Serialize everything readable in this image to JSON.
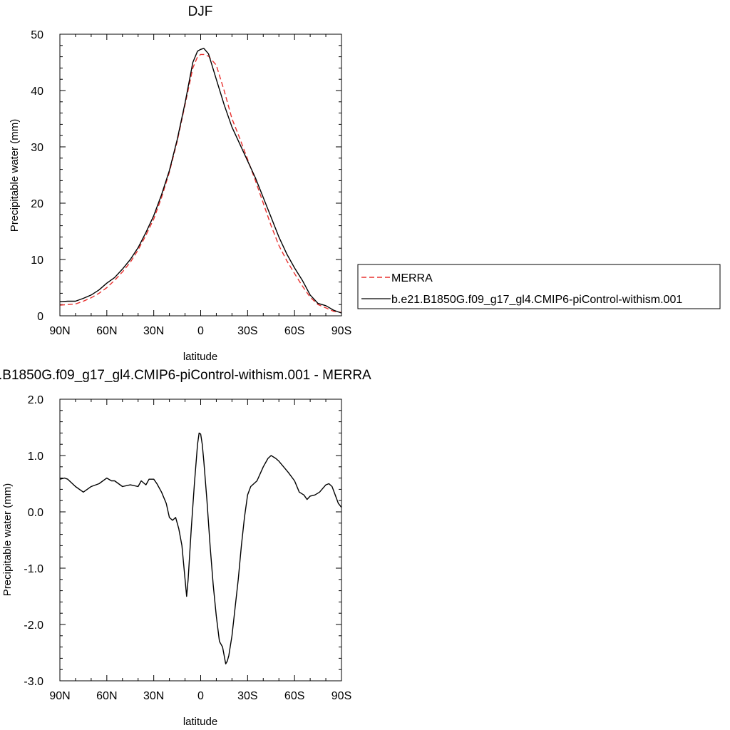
{
  "chart_data": [
    {
      "type": "line",
      "title": "DJF",
      "xlabel": "latitude",
      "ylabel": "Precipitable water (mm)",
      "xlim": [
        90,
        -90
      ],
      "ylim": [
        0,
        50
      ],
      "x_tick_values": [
        90,
        60,
        30,
        0,
        -30,
        -60,
        -90
      ],
      "x_tick_labels": [
        "90N",
        "60N",
        "30N",
        "0",
        "30S",
        "60S",
        "90S"
      ],
      "y_tick_values": [
        0,
        10,
        20,
        30,
        40,
        50
      ],
      "y_tick_labels": [
        "0",
        "10",
        "20",
        "30",
        "40",
        "50"
      ],
      "legend": {
        "placement": "right",
        "entries": [
          "MERRA",
          "b.e21.B1850G.f09_g17_gl4.CMIP6-piControl-withism.001"
        ]
      },
      "series": [
        {
          "name": "MERRA",
          "color": "#e8312f",
          "dash": "dashed",
          "x": [
            90,
            85,
            80,
            75,
            70,
            65,
            60,
            55,
            50,
            45,
            40,
            35,
            30,
            25,
            20,
            15,
            10,
            5,
            2,
            0,
            -2,
            -5,
            -10,
            -15,
            -20,
            -25,
            -30,
            -35,
            -40,
            -45,
            -50,
            -55,
            -60,
            -65,
            -70,
            -75,
            -80,
            -85,
            -90
          ],
          "y": [
            1.9,
            2.0,
            2.1,
            2.6,
            3.2,
            4.0,
            5.0,
            6.3,
            7.8,
            9.5,
            11.7,
            14.3,
            17.2,
            21.0,
            25.5,
            31.0,
            37.5,
            44.0,
            46.0,
            46.4,
            46.4,
            46.1,
            44.5,
            40.0,
            35.0,
            31.5,
            27.8,
            24.0,
            20.0,
            16.0,
            12.5,
            9.8,
            7.5,
            5.3,
            3.3,
            2.0,
            1.4,
            0.8,
            0.6
          ]
        },
        {
          "name": "b.e21.B1850G.f09_g17_gl4.CMIP6-piControl-withism.001",
          "color": "#000000",
          "dash": "solid",
          "x": [
            90,
            85,
            80,
            75,
            70,
            65,
            60,
            55,
            50,
            45,
            40,
            35,
            30,
            25,
            20,
            15,
            10,
            5,
            2,
            0,
            -2,
            -5,
            -10,
            -15,
            -20,
            -25,
            -30,
            -35,
            -40,
            -45,
            -50,
            -55,
            -60,
            -65,
            -70,
            -75,
            -80,
            -85,
            -90
          ],
          "y": [
            2.5,
            2.6,
            2.6,
            3.1,
            3.7,
            4.6,
            5.8,
            6.8,
            8.3,
            10.0,
            12.1,
            14.8,
            17.8,
            21.5,
            25.8,
            31.3,
            37.8,
            45.0,
            47.0,
            47.3,
            47.5,
            46.5,
            42.0,
            37.5,
            33.5,
            30.5,
            27.5,
            24.5,
            21.0,
            17.5,
            14.0,
            11.0,
            8.5,
            6.3,
            3.7,
            2.2,
            1.8,
            1.0,
            0.5
          ]
        }
      ]
    },
    {
      "type": "line",
      "title": ".B1850G.f09_g17_gl4.CMIP6-piControl-withism.001 - MERRA",
      "xlabel": "latitude",
      "ylabel": "Precipitable water (mm)",
      "xlim": [
        90,
        -90
      ],
      "ylim": [
        -3,
        2
      ],
      "x_tick_values": [
        90,
        60,
        30,
        0,
        -30,
        -60,
        -90
      ],
      "x_tick_labels": [
        "90N",
        "60N",
        "30N",
        "0",
        "30S",
        "60S",
        "90S"
      ],
      "y_tick_values": [
        2,
        1,
        0,
        -1,
        -2,
        -3
      ],
      "y_tick_labels": [
        "2.0",
        "1.0",
        "0.0",
        "-1.0",
        "-2.0",
        "-3.0"
      ],
      "series": [
        {
          "color": "#000000",
          "dash": "solid",
          "x": [
            90,
            87,
            85,
            80,
            75,
            70,
            65,
            60,
            57,
            55,
            50,
            45,
            40,
            38,
            35,
            33,
            30,
            28,
            25,
            22,
            20,
            18,
            16,
            14,
            12,
            10,
            9,
            8,
            6,
            4,
            2,
            1,
            0,
            -1,
            -2,
            -4,
            -6,
            -8,
            -10,
            -12,
            -14,
            -16,
            -17,
            -18,
            -20,
            -22,
            -24,
            -26,
            -28,
            -30,
            -32,
            -34,
            -36,
            -40,
            -43,
            -45,
            -48,
            -50,
            -53,
            -56,
            -60,
            -63,
            -66,
            -68,
            -70,
            -73,
            -76,
            -80,
            -82,
            -84,
            -86,
            -88,
            -90
          ],
          "y": [
            0.58,
            0.6,
            0.58,
            0.45,
            0.35,
            0.45,
            0.5,
            0.6,
            0.55,
            0.55,
            0.45,
            0.48,
            0.45,
            0.55,
            0.48,
            0.58,
            0.58,
            0.5,
            0.35,
            0.15,
            -0.1,
            -0.15,
            -0.1,
            -0.3,
            -0.6,
            -1.2,
            -1.5,
            -1.2,
            -0.3,
            0.5,
            1.2,
            1.4,
            1.38,
            1.2,
            0.9,
            0.2,
            -0.6,
            -1.3,
            -1.85,
            -2.3,
            -2.4,
            -2.7,
            -2.65,
            -2.55,
            -2.2,
            -1.7,
            -1.2,
            -0.6,
            -0.1,
            0.3,
            0.45,
            0.5,
            0.55,
            0.8,
            0.95,
            1.0,
            0.95,
            0.9,
            0.8,
            0.7,
            0.55,
            0.35,
            0.3,
            0.22,
            0.28,
            0.3,
            0.35,
            0.48,
            0.5,
            0.45,
            0.3,
            0.15,
            0.08
          ]
        }
      ]
    }
  ]
}
